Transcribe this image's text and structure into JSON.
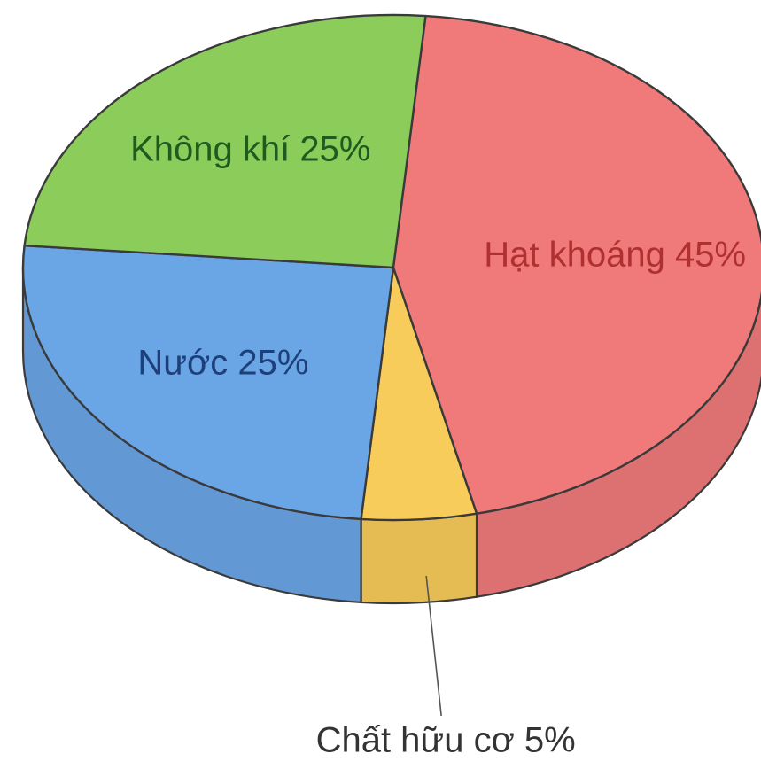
{
  "chart_data": {
    "type": "pie",
    "style": "3d",
    "slices": [
      {
        "label": "Hạt khoáng",
        "value": 45,
        "color": "#f07a7a",
        "label_text": "Hạt khoáng 45%",
        "label_color": "#b03030"
      },
      {
        "label": "Chất hữu cơ",
        "value": 5,
        "color": "#f8cc5a",
        "label_text": "Chất hữu cơ 5%",
        "label_color": "#333333"
      },
      {
        "label": "Nước",
        "value": 25,
        "color": "#6aa6e6",
        "label_text": "Nước 25%",
        "label_color": "#1f3f7a"
      },
      {
        "label": "Không khí",
        "value": 25,
        "color": "#8bcc5a",
        "label_text": "Không khí 25%",
        "label_color": "#1f5a1f"
      }
    ],
    "title": "",
    "legend": "none"
  }
}
